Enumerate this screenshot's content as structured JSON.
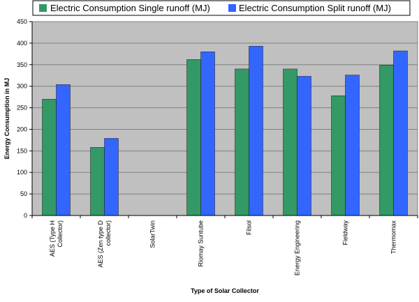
{
  "chart_data": {
    "type": "bar",
    "title": "",
    "xlabel": "Type of Solar Collector",
    "ylabel": "Energy Consumption in MJ",
    "ylim": [
      0,
      450
    ],
    "yticks": [
      0,
      50,
      100,
      150,
      200,
      250,
      300,
      350,
      400,
      450
    ],
    "grid": true,
    "legend_position": "top",
    "categories": [
      "AES (Type H Collector)",
      "AES (Zen type D collector)",
      "SolarTwin",
      "Riomay Suntube",
      "Filsol",
      "Energy Engineering",
      "Fieldway",
      "Thermomax"
    ],
    "category_lines": [
      [
        "AES (Type H",
        "Collector)"
      ],
      [
        "AES (Zen type D",
        "collector)"
      ],
      [
        "SolarTwin"
      ],
      [
        "Riomay Suntube"
      ],
      [
        "Filsol"
      ],
      [
        "Energy Engineering"
      ],
      [
        "Fieldway"
      ],
      [
        "Thermomax"
      ]
    ],
    "series": [
      {
        "name": "Electric Consumption Single runoff (MJ)",
        "color": "#339966",
        "values": [
          270,
          158,
          0,
          362,
          340,
          340,
          278,
          349
        ]
      },
      {
        "name": "Electric Consumption Split runoff (MJ)",
        "color": "#3366ff",
        "values": [
          304,
          179,
          0,
          380,
          393,
          323,
          326,
          382
        ]
      }
    ],
    "plot_background": "#c0c0c0",
    "grid_color": "#808080"
  }
}
